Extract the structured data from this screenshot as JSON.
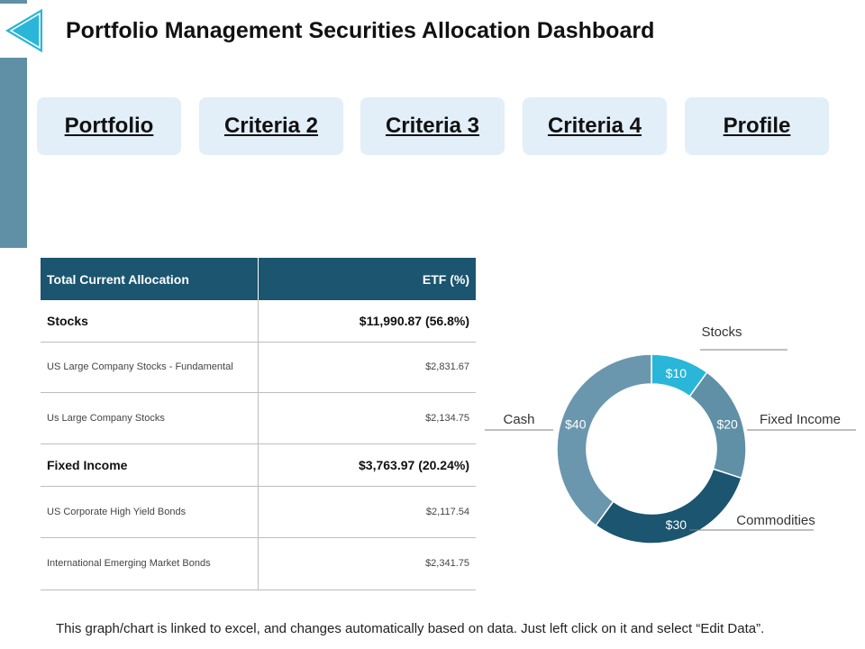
{
  "page": {
    "title": "Portfolio Management Securities Allocation Dashboard",
    "footer": "This graph/chart is linked to excel, and changes automatically  based on data.  Just left click on it and select “Edit Data”."
  },
  "tabs": [
    {
      "label": "Portfolio"
    },
    {
      "label": "Criteria 2"
    },
    {
      "label": "Criteria 3"
    },
    {
      "label": "Criteria 4"
    },
    {
      "label": "Profile"
    }
  ],
  "table": {
    "headers": [
      "Total Current Allocation",
      "ETF (%)"
    ],
    "rows": [
      {
        "label": "Stocks",
        "value": "$11,990.87 (56.8%)",
        "type": "main"
      },
      {
        "label": "US Large Company  Stocks - Fundamental",
        "value": "$2,831.67",
        "type": "sub"
      },
      {
        "label": "Us Large Company  Stocks",
        "value": "$2,134.75",
        "type": "sub"
      },
      {
        "label": "Fixed Income",
        "value": "$3,763.97 (20.24%)",
        "type": "main"
      },
      {
        "label": "US Corporate High Yield Bonds",
        "value": "$2,117.54",
        "type": "sub"
      },
      {
        "label": "International Emerging Market Bonds",
        "value": "$2,341.75",
        "type": "sub"
      }
    ]
  },
  "chart_data": {
    "type": "pie",
    "donut": true,
    "categories": [
      "Stocks",
      "Fixed Income",
      "Commodities",
      "Cash"
    ],
    "values": [
      10,
      20,
      30,
      40
    ],
    "data_labels": [
      "$10",
      "$20",
      "$30",
      "$40"
    ],
    "colors": [
      "#29b6d8",
      "#5f90a6",
      "#1b5570",
      "#6a97ad"
    ]
  },
  "colors": {
    "header_bg": "#1b5570",
    "tab_bg": "#e2eef8",
    "accent": "#29b6d8",
    "side_bar": "#5f90a6"
  },
  "icons": {
    "logo": "play-triangle-icon"
  }
}
